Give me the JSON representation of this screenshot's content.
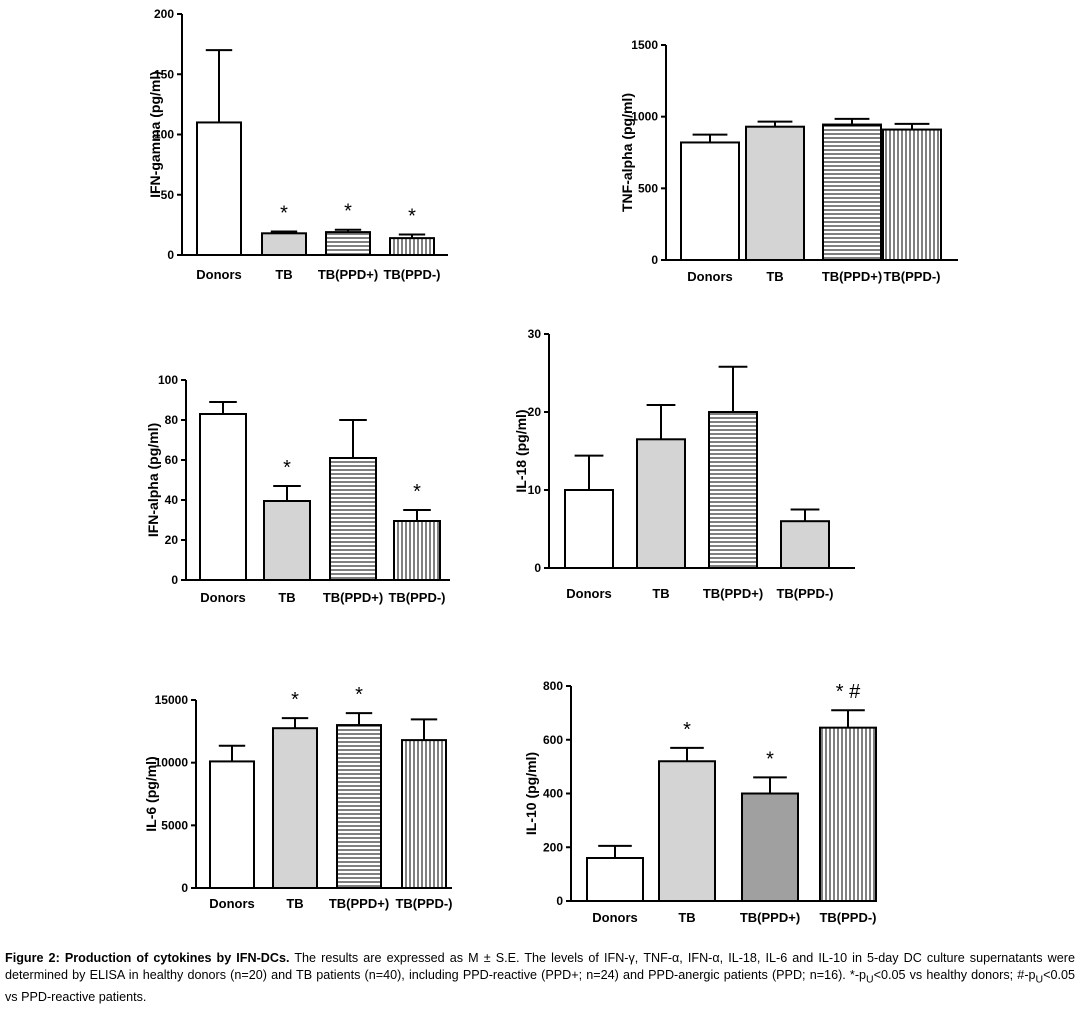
{
  "chart_data": [
    {
      "type": "bar",
      "ylabel": "IFN-gamma (pg/ml)",
      "categories": [
        "Donors",
        "TB",
        "TB(PPD+)",
        "TB(PPD-)"
      ],
      "values": [
        110,
        18,
        19,
        14
      ],
      "errors": [
        60,
        1.5,
        2,
        3
      ],
      "ylim": [
        0,
        200
      ],
      "yticks": [
        0,
        50,
        100,
        150,
        200
      ],
      "tick_labels": [
        "0",
        "50",
        "100",
        "150",
        "200"
      ],
      "fills": [
        "white",
        "lightgray",
        "hlines",
        "vlines"
      ],
      "annotations": [
        "",
        "*",
        "*",
        "*"
      ]
    },
    {
      "type": "bar",
      "ylabel": "TNF-alpha (pg/ml)",
      "categories": [
        "Donors",
        "TB",
        "TB(PPD+)",
        "TB(PPD-)"
      ],
      "values": [
        820,
        930,
        945,
        910
      ],
      "errors": [
        55,
        35,
        40,
        40
      ],
      "ylim": [
        0,
        1500
      ],
      "yticks": [
        0,
        500,
        1000,
        1500
      ],
      "tick_labels": [
        "0",
        "500",
        "1000",
        "1500"
      ],
      "fills": [
        "white",
        "lightgray",
        "hlines",
        "vlines"
      ],
      "annotations": [
        "",
        "",
        "",
        ""
      ]
    },
    {
      "type": "bar",
      "ylabel": "IFN-alpha (pg/ml)",
      "categories": [
        "Donors",
        "TB",
        "TB(PPD+)",
        "TB(PPD-)"
      ],
      "values": [
        83,
        39.5,
        61,
        29.5
      ],
      "errors": [
        6,
        7.5,
        19,
        5.5
      ],
      "ylim": [
        0,
        100
      ],
      "yticks": [
        0,
        20,
        40,
        60,
        80,
        100
      ],
      "tick_labels": [
        "0",
        "20",
        "40",
        "60",
        "80",
        "100"
      ],
      "fills": [
        "white",
        "lightgray",
        "hlines",
        "vlines"
      ],
      "annotations": [
        "",
        "*",
        "",
        "*"
      ]
    },
    {
      "type": "bar",
      "ylabel": "IL-18 (pg/ml)",
      "categories": [
        "Donors",
        "TB",
        "TB(PPD+)",
        "TB(PPD-)"
      ],
      "values": [
        10,
        16.5,
        20,
        6
      ],
      "errors": [
        4.4,
        4.4,
        5.8,
        1.5
      ],
      "ylim": [
        0,
        30
      ],
      "yticks": [
        0,
        10,
        20,
        30
      ],
      "tick_labels": [
        "0",
        "10",
        "20",
        "30"
      ],
      "fills": [
        "white",
        "lightgray",
        "hlines",
        "lightgray"
      ],
      "annotations": [
        "",
        "",
        "",
        ""
      ]
    },
    {
      "type": "bar",
      "ylabel": "IL-6 (pg/ml)",
      "categories": [
        "Donors",
        "TB",
        "TB(PPD+)",
        "TB(PPD-)"
      ],
      "values": [
        10100,
        12750,
        13000,
        11800
      ],
      "errors": [
        1250,
        800,
        950,
        1650
      ],
      "ylim": [
        0,
        15000
      ],
      "yticks": [
        0,
        5000,
        10000,
        15000
      ],
      "tick_labels": [
        "0",
        "5000",
        "10000",
        "15000"
      ],
      "fills": [
        "white",
        "lightgray",
        "hlines",
        "vlines"
      ],
      "annotations": [
        "",
        "*",
        "*",
        ""
      ]
    },
    {
      "type": "bar",
      "ylabel": "IL-10 (pg/ml)",
      "categories": [
        "Donors",
        "TB",
        "TB(PPD+)",
        "TB(PPD-)"
      ],
      "values": [
        160,
        520,
        400,
        645
      ],
      "errors": [
        45,
        50,
        60,
        65
      ],
      "ylim": [
        0,
        800
      ],
      "yticks": [
        0,
        200,
        400,
        600,
        800
      ],
      "tick_labels": [
        "0",
        "200",
        "400",
        "600",
        "800"
      ],
      "fills": [
        "white",
        "lightgray",
        "darkgray",
        "vlines"
      ],
      "annotations": [
        "",
        "*",
        "*",
        "* #"
      ]
    }
  ],
  "caption": {
    "label": "Figure 2: Production of cytokines by IFN-DCs.",
    "text": "The results are expressed as M ± S.E. The levels of IFN-γ, TNF-α, IFN-α, IL-18, IL-6 and IL-10 in 5-day DC culture supernatants were determined by ELISA in healthy donors (n=20) and TB patients (n=40), including PPD-reactive (PPD+; n=24) and PPD-anergic patients (PPD; n=16). *-p",
    "sub1": "U",
    "text2": "<0.05 vs healthy donors; #-p",
    "sub2": "U",
    "text3": "<0.05 vs PPD-reactive patients."
  },
  "colors": {
    "axis": "#000000",
    "bar_white": "#ffffff",
    "bar_lightgray": "#d4d4d4",
    "bar_darkgray": "#a0a0a0",
    "hatch": "#000000"
  }
}
